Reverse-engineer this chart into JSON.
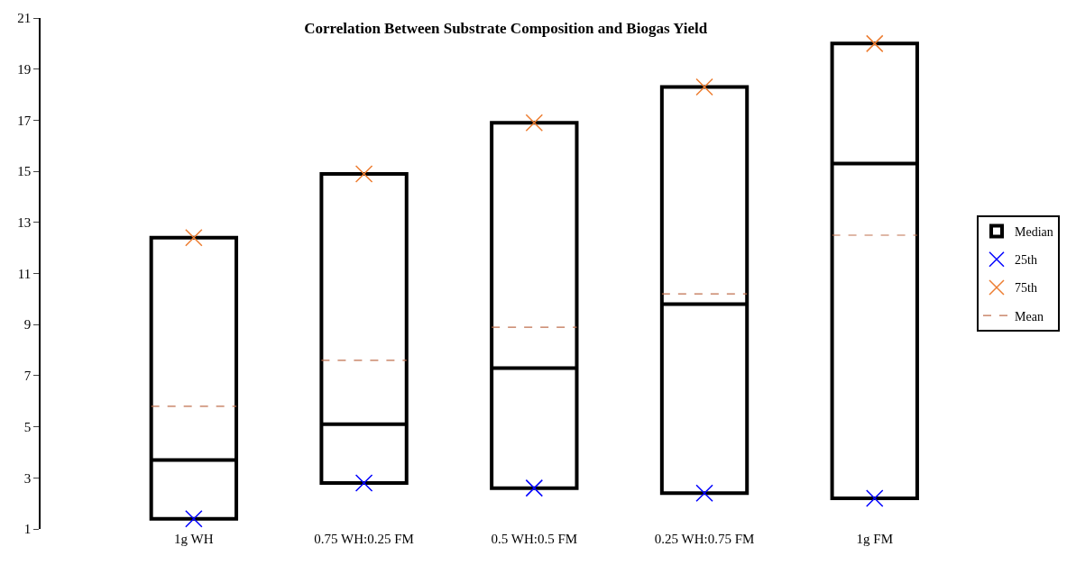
{
  "chart_data": {
    "type": "box",
    "title": "Correlation Between Substrate Composition and Biogas Yield",
    "categories": [
      "1g WH",
      "0.75 WH:0.25 FM",
      "0.5 WH:0.5 FM",
      "0.25 WH:0.75 FM",
      "1g FM"
    ],
    "ylim": [
      1,
      21
    ],
    "yticks": [
      1,
      3,
      5,
      7,
      9,
      11,
      13,
      15,
      17,
      19,
      21
    ],
    "legend": "right",
    "series": [
      {
        "name": "Median",
        "type": "box",
        "color": "#000000",
        "boxes": [
          {
            "low": 1.4,
            "q1": 1.4,
            "median": 3.7,
            "q3": 12.4,
            "high": 12.4,
            "mean": 5.8
          },
          {
            "low": 2.8,
            "q1": 2.8,
            "median": 5.1,
            "q3": 14.9,
            "high": 14.9,
            "mean": 7.6
          },
          {
            "low": 2.6,
            "q1": 2.6,
            "median": 7.3,
            "q3": 16.9,
            "high": 16.9,
            "mean": 8.9
          },
          {
            "low": 2.4,
            "q1": 2.4,
            "median": 9.8,
            "q3": 18.3,
            "high": 18.3,
            "mean": 10.2
          },
          {
            "low": 2.2,
            "q1": 2.2,
            "median": 15.3,
            "q3": 20.0,
            "high": 20.0,
            "mean": 12.5
          }
        ]
      },
      {
        "name": "25th",
        "type": "scatter",
        "marker": "cross",
        "color": "#0000ff",
        "values": [
          1.4,
          2.8,
          2.6,
          2.4,
          2.2
        ]
      },
      {
        "name": "75th",
        "type": "scatter",
        "marker": "cross",
        "color": "#ed7d31",
        "values": [
          12.4,
          14.9,
          16.9,
          18.3,
          20.0
        ]
      },
      {
        "name": "Mean",
        "type": "line",
        "line_style": "dashed",
        "color": "#c0704f",
        "values": [
          null,
          null,
          null,
          null,
          null
        ]
      }
    ]
  }
}
